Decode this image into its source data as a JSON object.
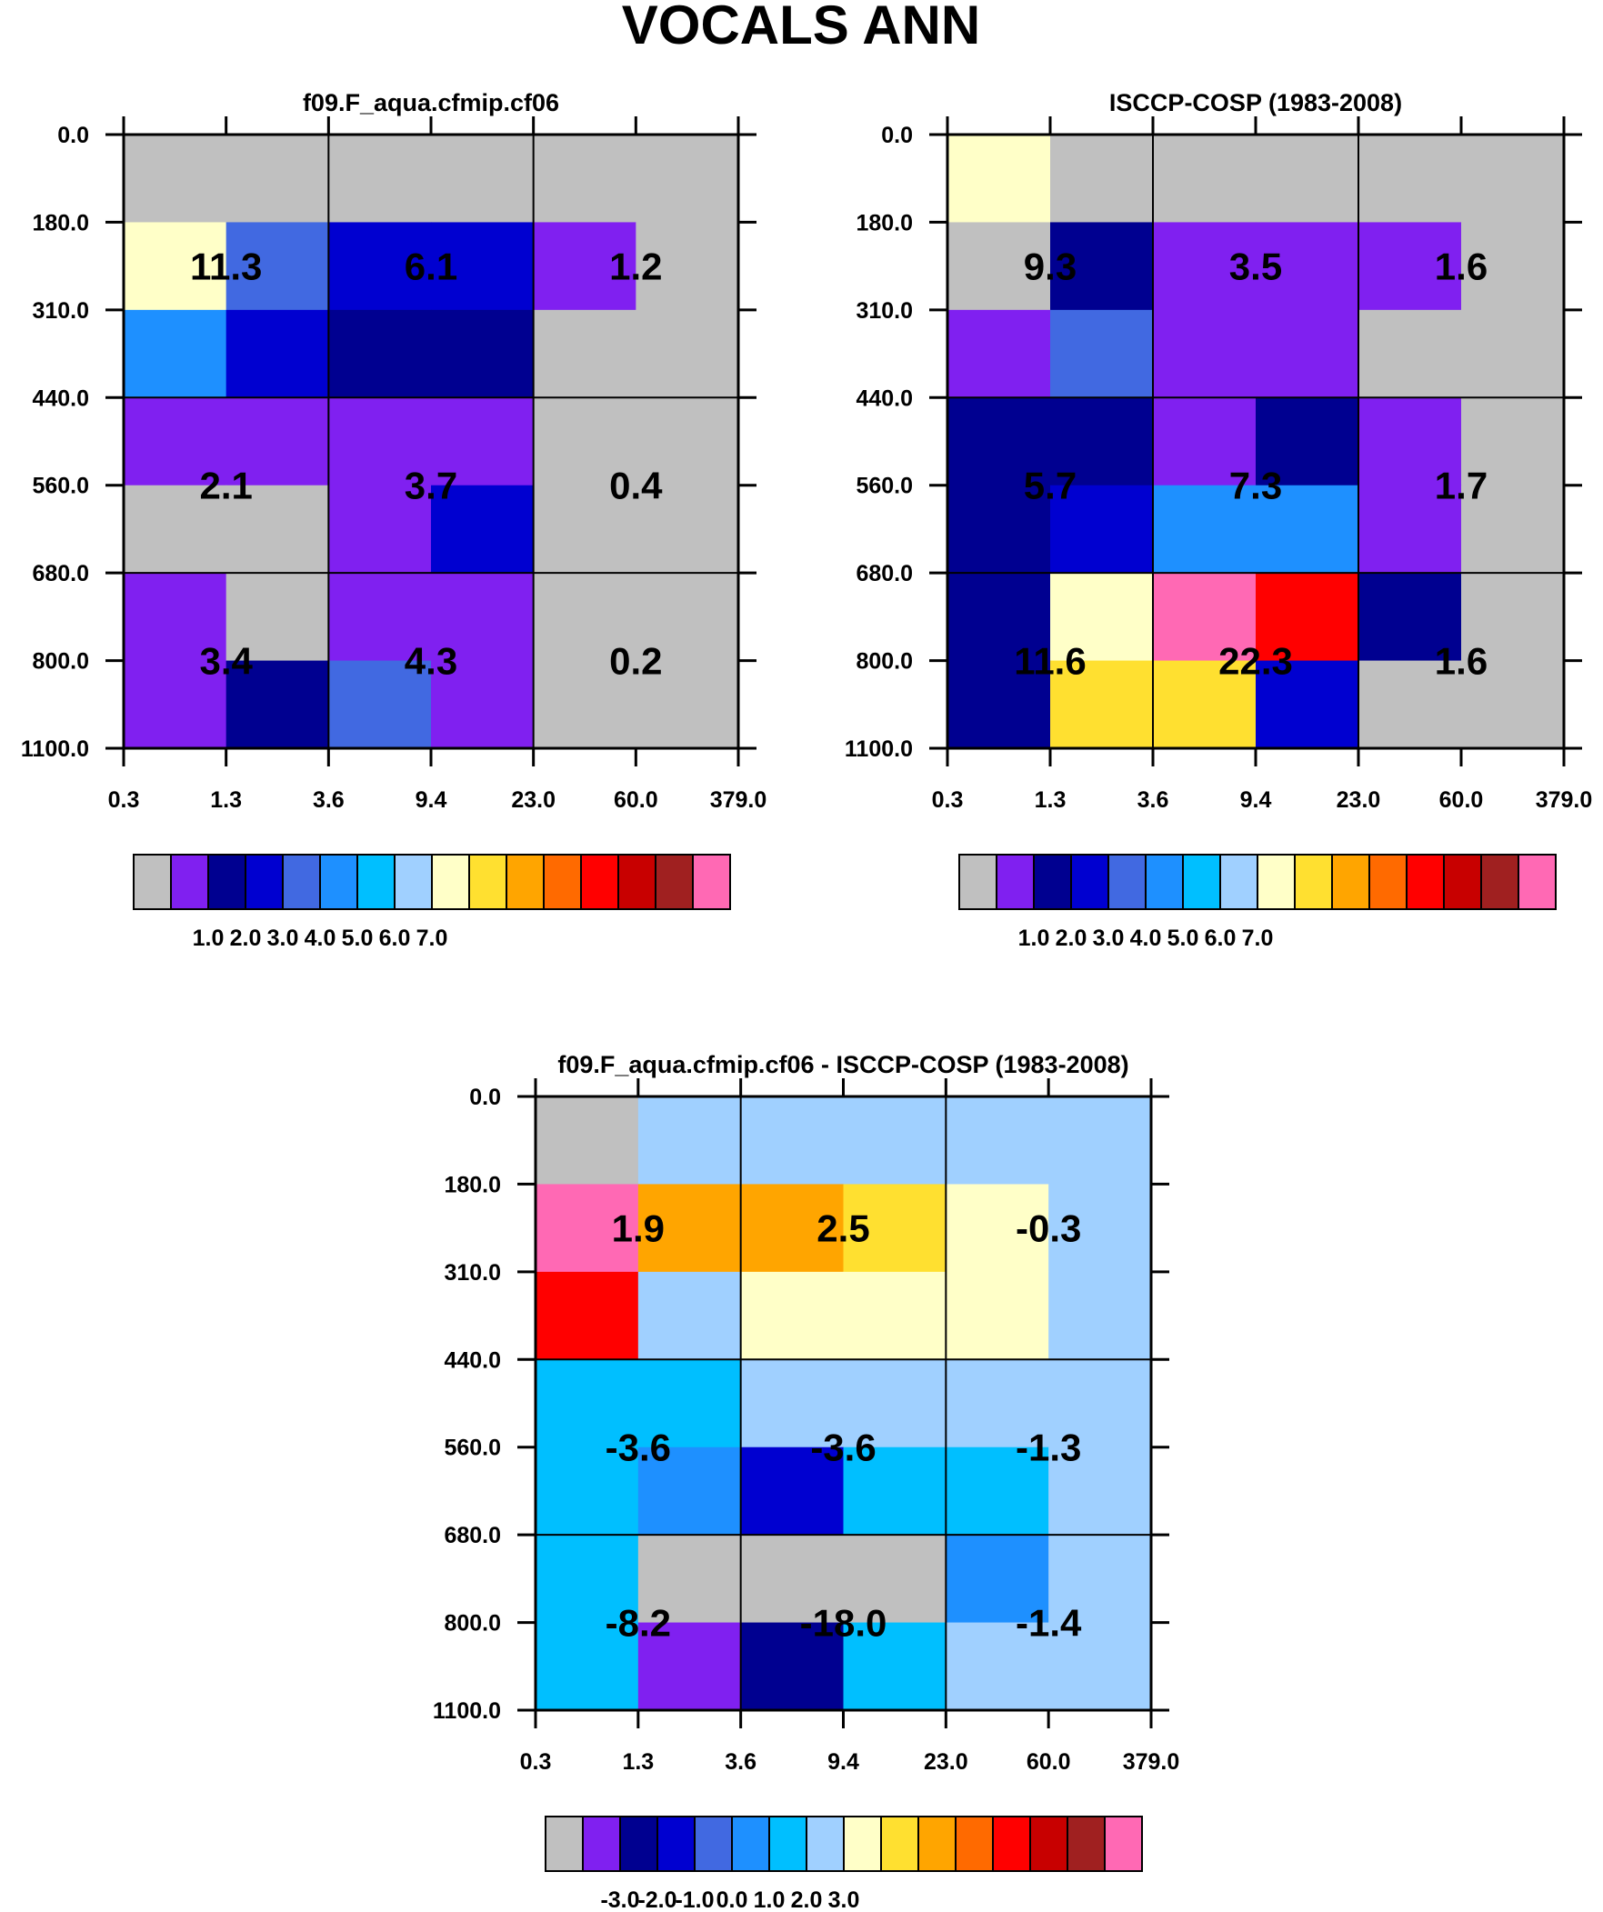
{
  "figure": {
    "title": "VOCALS ANN"
  },
  "chart_data": [
    {
      "type": "heatmap",
      "id": "model",
      "title": "f09.F_aqua.cfmip.cf06",
      "x_ticks": [
        "0.3",
        "1.3",
        "3.6",
        "9.4",
        "23.0",
        "60.0",
        "379.0"
      ],
      "y_ticks": [
        "0.0",
        "180.0",
        "310.0",
        "440.0",
        "560.0",
        "680.0",
        "800.0",
        "1100.0"
      ],
      "xlabel": "",
      "ylabel": "",
      "grid": true,
      "cell_colors": [
        [
          "c0",
          "c0",
          "c0",
          "c0",
          "c0",
          "c0"
        ],
        [
          "c8",
          "c4",
          "c3",
          "c3",
          "c1",
          "c0"
        ],
        [
          "c5",
          "c3",
          "c2",
          "c2",
          "c0",
          "c0"
        ],
        [
          "c1",
          "c1",
          "c1",
          "c1",
          "c0",
          "c0"
        ],
        [
          "c0",
          "c0",
          "c1",
          "c3",
          "c0",
          "c0"
        ],
        [
          "c1",
          "c0",
          "c1",
          "c1",
          "c0",
          "c0"
        ],
        [
          "c1",
          "c2",
          "c4",
          "c1",
          "c0",
          "c0"
        ]
      ],
      "block_totals": [
        {
          "x_range": [
            0.3,
            3.6
          ],
          "y_range": [
            180,
            440
          ],
          "label": "11.3"
        },
        {
          "x_range": [
            3.6,
            23.0
          ],
          "y_range": [
            180,
            440
          ],
          "label": "6.1"
        },
        {
          "x_range": [
            23.0,
            379.0
          ],
          "y_range": [
            180,
            440
          ],
          "label": "1.2"
        },
        {
          "x_range": [
            0.3,
            3.6
          ],
          "y_range": [
            440,
            680
          ],
          "label": "2.1"
        },
        {
          "x_range": [
            3.6,
            23.0
          ],
          "y_range": [
            440,
            680
          ],
          "label": "3.7"
        },
        {
          "x_range": [
            23.0,
            379.0
          ],
          "y_range": [
            440,
            680
          ],
          "label": "0.4"
        },
        {
          "x_range": [
            0.3,
            3.6
          ],
          "y_range": [
            680,
            1100
          ],
          "label": "3.4"
        },
        {
          "x_range": [
            3.6,
            23.0
          ],
          "y_range": [
            680,
            1100
          ],
          "label": "4.3"
        },
        {
          "x_range": [
            23.0,
            379.0
          ],
          "y_range": [
            680,
            1100
          ],
          "label": "0.2"
        }
      ],
      "colorbar": {
        "colors": [
          "#c0c0c0",
          "#8020f0",
          "#000090",
          "#0000d0",
          "#4169e1",
          "#1e90ff",
          "#00bfff",
          "#a0d0ff",
          "#ffffc8",
          "#ffe030",
          "#ffa500",
          "#ff6a00",
          "#ff0000",
          "#c80000",
          "#a02020",
          "#ff69b4"
        ],
        "labels": [
          "1.0",
          "2.0",
          "3.0",
          "4.0",
          "5.0",
          "6.0",
          "7.0"
        ]
      }
    },
    {
      "type": "heatmap",
      "id": "obs",
      "title": "ISCCP-COSP (1983-2008)",
      "x_ticks": [
        "0.3",
        "1.3",
        "3.6",
        "9.4",
        "23.0",
        "60.0",
        "379.0"
      ],
      "y_ticks": [
        "0.0",
        "180.0",
        "310.0",
        "440.0",
        "560.0",
        "680.0",
        "800.0",
        "1100.0"
      ],
      "xlabel": "",
      "ylabel": "",
      "grid": true,
      "cell_colors": [
        [
          "c8",
          "c0",
          "c0",
          "c0",
          "c0",
          "c0"
        ],
        [
          "c0",
          "c2",
          "c1",
          "c1",
          "c1",
          "c0"
        ],
        [
          "c1",
          "c4",
          "c1",
          "c1",
          "c0",
          "c0"
        ],
        [
          "c2",
          "c2",
          "c1",
          "c2",
          "c1",
          "c0"
        ],
        [
          "c2",
          "c3",
          "c5",
          "c5",
          "c1",
          "c0"
        ],
        [
          "c2",
          "c8",
          "c15",
          "c12",
          "c2",
          "c0"
        ],
        [
          "c2",
          "c9",
          "c9",
          "c3",
          "c0",
          "c0"
        ]
      ],
      "block_totals": [
        {
          "x_range": [
            0.3,
            3.6
          ],
          "y_range": [
            180,
            440
          ],
          "label": "9.3"
        },
        {
          "x_range": [
            3.6,
            23.0
          ],
          "y_range": [
            180,
            440
          ],
          "label": "3.5"
        },
        {
          "x_range": [
            23.0,
            379.0
          ],
          "y_range": [
            180,
            440
          ],
          "label": "1.6"
        },
        {
          "x_range": [
            0.3,
            3.6
          ],
          "y_range": [
            440,
            680
          ],
          "label": "5.7"
        },
        {
          "x_range": [
            3.6,
            23.0
          ],
          "y_range": [
            440,
            680
          ],
          "label": "7.3"
        },
        {
          "x_range": [
            23.0,
            379.0
          ],
          "y_range": [
            440,
            680
          ],
          "label": "1.7"
        },
        {
          "x_range": [
            0.3,
            3.6
          ],
          "y_range": [
            680,
            1100
          ],
          "label": "11.6"
        },
        {
          "x_range": [
            3.6,
            23.0
          ],
          "y_range": [
            680,
            1100
          ],
          "label": "22.3"
        },
        {
          "x_range": [
            23.0,
            379.0
          ],
          "y_range": [
            680,
            1100
          ],
          "label": "1.6"
        }
      ],
      "colorbar": {
        "colors": [
          "#c0c0c0",
          "#8020f0",
          "#000090",
          "#0000d0",
          "#4169e1",
          "#1e90ff",
          "#00bfff",
          "#a0d0ff",
          "#ffffc8",
          "#ffe030",
          "#ffa500",
          "#ff6a00",
          "#ff0000",
          "#c80000",
          "#a02020",
          "#ff69b4"
        ],
        "labels": [
          "1.0",
          "2.0",
          "3.0",
          "4.0",
          "5.0",
          "6.0",
          "7.0"
        ]
      }
    },
    {
      "type": "heatmap",
      "id": "diff",
      "title": "f09.F_aqua.cfmip.cf06 - ISCCP-COSP (1983-2008)",
      "x_ticks": [
        "0.3",
        "1.3",
        "3.6",
        "9.4",
        "23.0",
        "60.0",
        "379.0"
      ],
      "y_ticks": [
        "0.0",
        "180.0",
        "310.0",
        "440.0",
        "560.0",
        "680.0",
        "800.0",
        "1100.0"
      ],
      "xlabel": "",
      "ylabel": "",
      "grid": true,
      "cell_colors": [
        [
          "c0",
          "c7",
          "c7",
          "c7",
          "c7",
          "c7"
        ],
        [
          "c15",
          "c10",
          "c10",
          "c9",
          "c8",
          "c7"
        ],
        [
          "c12",
          "c7",
          "c8",
          "c8",
          "c8",
          "c7"
        ],
        [
          "c6",
          "c6",
          "c7",
          "c7",
          "c7",
          "c7"
        ],
        [
          "c6",
          "c5",
          "c3",
          "c6",
          "c6",
          "c7"
        ],
        [
          "c6",
          "c0",
          "c0",
          "c0",
          "c5",
          "c7"
        ],
        [
          "c6",
          "c1",
          "c2",
          "c6",
          "c7",
          "c7"
        ]
      ],
      "block_totals": [
        {
          "x_range": [
            0.3,
            3.6
          ],
          "y_range": [
            180,
            440
          ],
          "label": "1.9"
        },
        {
          "x_range": [
            3.6,
            23.0
          ],
          "y_range": [
            180,
            440
          ],
          "label": "2.5"
        },
        {
          "x_range": [
            23.0,
            379.0
          ],
          "y_range": [
            180,
            440
          ],
          "label": "-0.3"
        },
        {
          "x_range": [
            0.3,
            3.6
          ],
          "y_range": [
            440,
            680
          ],
          "label": "-3.6"
        },
        {
          "x_range": [
            3.6,
            23.0
          ],
          "y_range": [
            440,
            680
          ],
          "label": "-3.6"
        },
        {
          "x_range": [
            23.0,
            379.0
          ],
          "y_range": [
            440,
            680
          ],
          "label": "-1.3"
        },
        {
          "x_range": [
            0.3,
            3.6
          ],
          "y_range": [
            680,
            1100
          ],
          "label": "-8.2"
        },
        {
          "x_range": [
            3.6,
            23.0
          ],
          "y_range": [
            680,
            1100
          ],
          "label": "-18.0"
        },
        {
          "x_range": [
            23.0,
            379.0
          ],
          "y_range": [
            680,
            1100
          ],
          "label": "-1.4"
        }
      ],
      "colorbar": {
        "colors": [
          "#c0c0c0",
          "#8020f0",
          "#000090",
          "#0000d0",
          "#4169e1",
          "#1e90ff",
          "#00bfff",
          "#a0d0ff",
          "#ffffc8",
          "#ffe030",
          "#ffa500",
          "#ff6a00",
          "#ff0000",
          "#c80000",
          "#a02020",
          "#ff69b4"
        ],
        "labels": [
          "-3.0",
          "-2.0",
          "-1.0",
          "0.0",
          "1.0",
          "2.0",
          "3.0"
        ]
      }
    }
  ]
}
